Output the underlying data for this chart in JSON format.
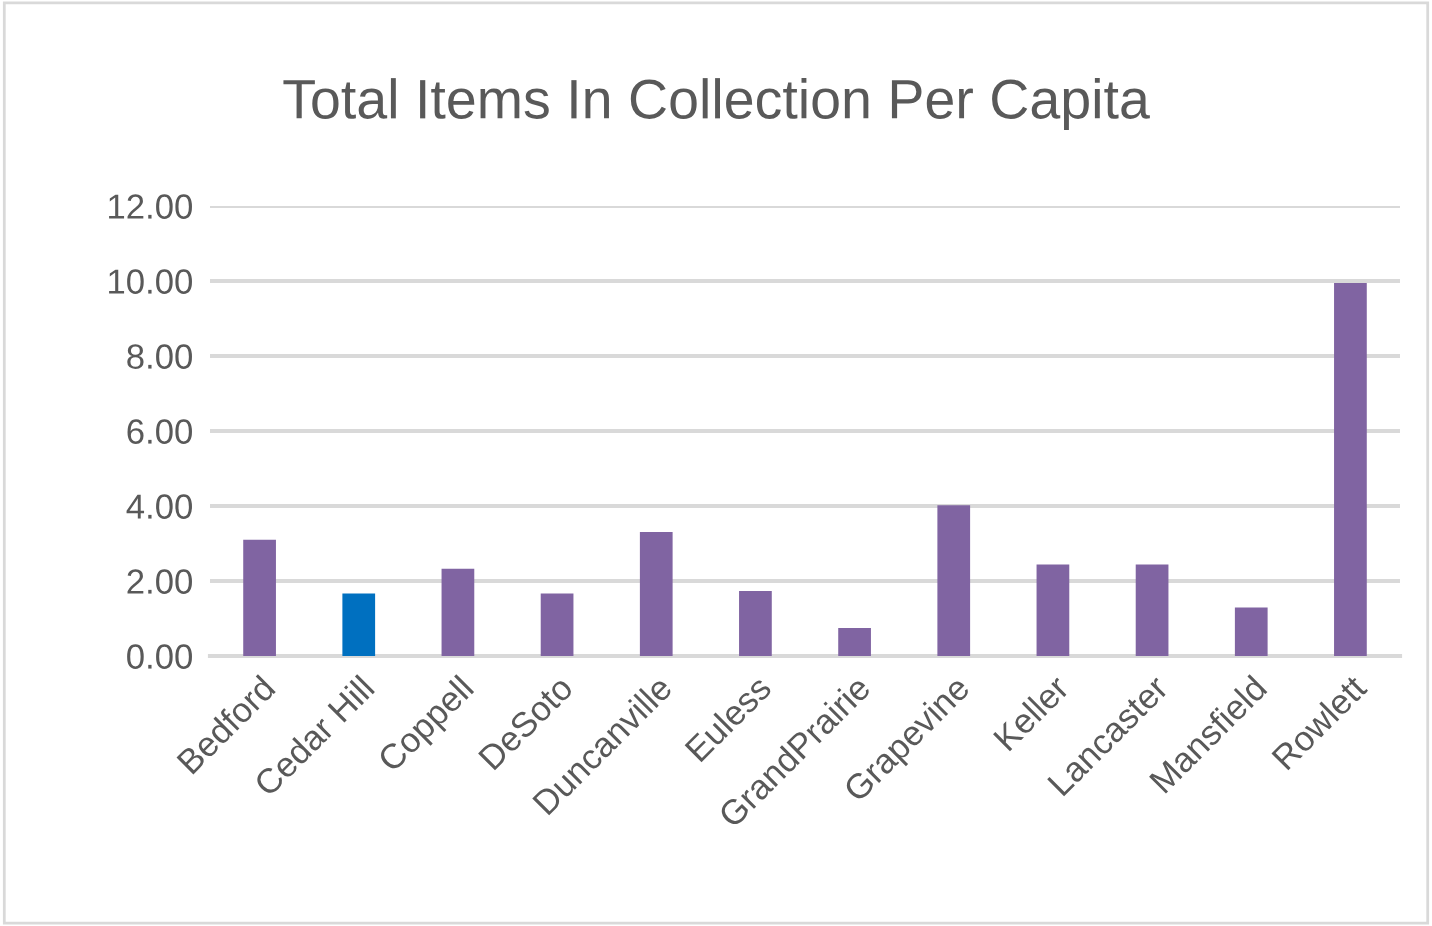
{
  "chart_data": {
    "type": "bar",
    "title": "Total Items In Collection Per Capita",
    "categories": [
      "Bedford",
      "Cedar Hill",
      "Coppell",
      "DeSoto",
      "Duncanville",
      "Euless",
      "GrandPrairie",
      "Grapevine",
      "Keller",
      "Lancaster",
      "Mansfield",
      "Rowlett"
    ],
    "values": [
      3.1,
      1.67,
      2.33,
      1.67,
      3.31,
      1.73,
      0.75,
      4.02,
      2.44,
      2.44,
      1.29,
      9.95
    ],
    "colors": [
      "#8064a2",
      "#0070c0",
      "#8064a2",
      "#8064a2",
      "#8064a2",
      "#8064a2",
      "#8064a2",
      "#8064a2",
      "#8064a2",
      "#8064a2",
      "#8064a2",
      "#8064a2"
    ],
    "ylim": [
      0,
      12
    ],
    "yticks": [
      {
        "value": 0,
        "label": "0.00"
      },
      {
        "value": 2,
        "label": "2.00"
      },
      {
        "value": 4,
        "label": "4.00"
      },
      {
        "value": 6,
        "label": "6.00"
      },
      {
        "value": 8,
        "label": "8.00"
      },
      {
        "value": 10,
        "label": "10.00"
      },
      {
        "value": 12,
        "label": "12.00"
      }
    ],
    "grid": "y"
  }
}
